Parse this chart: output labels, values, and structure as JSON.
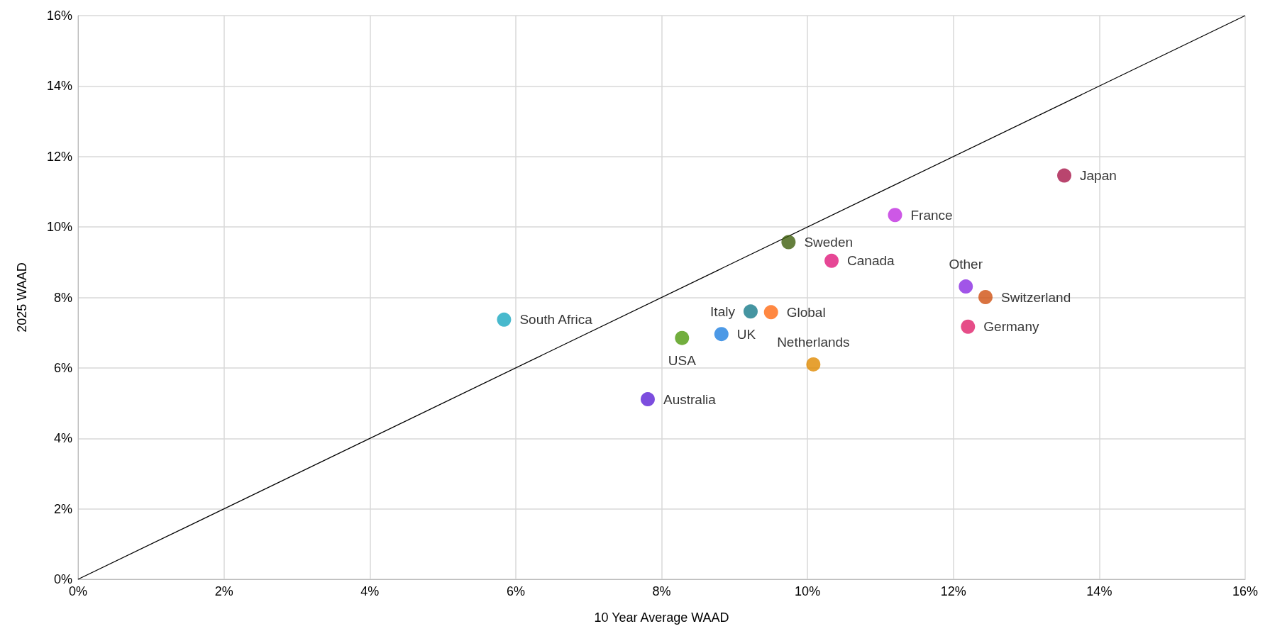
{
  "chart_data": {
    "type": "scatter",
    "xlabel": "10 Year Average WAAD",
    "ylabel": "2025 WAAD",
    "xlim": [
      0,
      16
    ],
    "ylim": [
      0,
      16
    ],
    "xticks": [
      {
        "value": 0,
        "label": "0%"
      },
      {
        "value": 2,
        "label": "2%"
      },
      {
        "value": 4,
        "label": "4%"
      },
      {
        "value": 6,
        "label": "6%"
      },
      {
        "value": 8,
        "label": "8%"
      },
      {
        "value": 10,
        "label": "10%"
      },
      {
        "value": 12,
        "label": "12%"
      },
      {
        "value": 14,
        "label": "14%"
      },
      {
        "value": 16,
        "label": "16%"
      }
    ],
    "yticks": [
      {
        "value": 0,
        "label": "0%"
      },
      {
        "value": 2,
        "label": "2%"
      },
      {
        "value": 4,
        "label": "4%"
      },
      {
        "value": 6,
        "label": "6%"
      },
      {
        "value": 8,
        "label": "8%"
      },
      {
        "value": 10,
        "label": "10%"
      },
      {
        "value": 12,
        "label": "12%"
      },
      {
        "value": 14,
        "label": "14%"
      },
      {
        "value": 16,
        "label": "16%"
      }
    ],
    "grid": true,
    "legend": false,
    "marker": "circle",
    "series": [
      {
        "name": "South Africa",
        "color": "#1aa7c0",
        "x": [
          5.84
        ],
        "values": [
          7.37
        ]
      },
      {
        "name": "Australia",
        "color": "#5b21d6",
        "x": [
          7.81
        ],
        "values": [
          5.11
        ]
      },
      {
        "name": "USA",
        "color": "#4f9a0e",
        "x": [
          8.28
        ],
        "values": [
          6.85
        ]
      },
      {
        "name": "UK",
        "color": "#1f7fe0",
        "x": [
          8.82
        ],
        "values": [
          6.96
        ]
      },
      {
        "name": "Italy",
        "color": "#177a8a",
        "x": [
          9.22
        ],
        "values": [
          7.6
        ]
      },
      {
        "name": "Global",
        "color": "#ff6a13",
        "x": [
          9.5
        ],
        "values": [
          7.58
        ]
      },
      {
        "name": "Sweden",
        "color": "#3e5f0c",
        "x": [
          9.74
        ],
        "values": [
          9.57
        ]
      },
      {
        "name": "Canada",
        "color": "#e0197a",
        "x": [
          10.33
        ],
        "values": [
          9.04
        ]
      },
      {
        "name": "Netherlands",
        "color": "#e08a00",
        "x": [
          10.08
        ],
        "values": [
          6.1
        ]
      },
      {
        "name": "France",
        "color": "#c02ee0",
        "x": [
          11.2
        ],
        "values": [
          10.34
        ]
      },
      {
        "name": "Other",
        "color": "#8a2be2",
        "x": [
          12.17
        ],
        "values": [
          8.31
        ]
      },
      {
        "name": "Switzerland",
        "color": "#d05010",
        "x": [
          12.44
        ],
        "values": [
          8.01
        ]
      },
      {
        "name": "Germany",
        "color": "#e0206a",
        "x": [
          12.2
        ],
        "values": [
          7.17
        ]
      },
      {
        "name": "Japan",
        "color": "#a8164a",
        "x": [
          13.52
        ],
        "values": [
          11.46
        ]
      },
      {
        "type": "line",
        "color": "#000000",
        "x": [
          0,
          16
        ],
        "values": [
          0,
          16
        ],
        "marker": "none",
        "line_style": "solid"
      }
    ]
  }
}
